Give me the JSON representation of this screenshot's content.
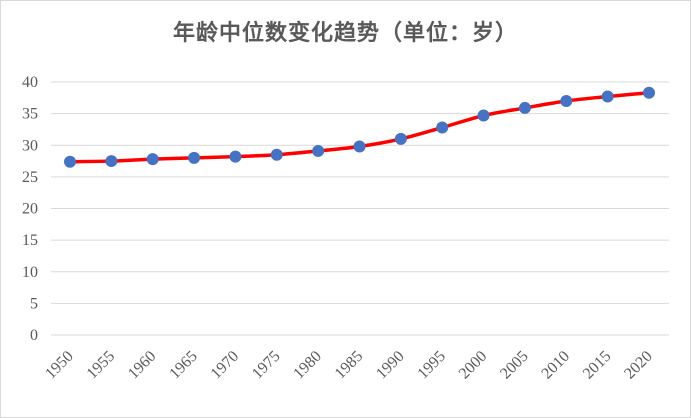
{
  "chart_data": {
    "type": "line",
    "title": "年龄中位数变化趋势（单位：岁）",
    "xlabel": "",
    "ylabel": "",
    "categories": [
      "1950",
      "1955",
      "1960",
      "1965",
      "1970",
      "1975",
      "1980",
      "1985",
      "1990",
      "1995",
      "2000",
      "2005",
      "2010",
      "2015",
      "2020"
    ],
    "series": [
      {
        "values": [
          27.4,
          27.5,
          27.8,
          28.0,
          28.2,
          28.5,
          29.1,
          29.8,
          31.0,
          32.8,
          34.7,
          35.9,
          37.0,
          37.7,
          38.3
        ]
      }
    ],
    "ylim": [
      0,
      40
    ],
    "yticks": [
      0,
      5,
      10,
      15,
      20,
      25,
      30,
      35,
      40
    ],
    "grid": true,
    "legend": "none",
    "line_color": "#ff0000",
    "marker_color": "#4472c4"
  }
}
